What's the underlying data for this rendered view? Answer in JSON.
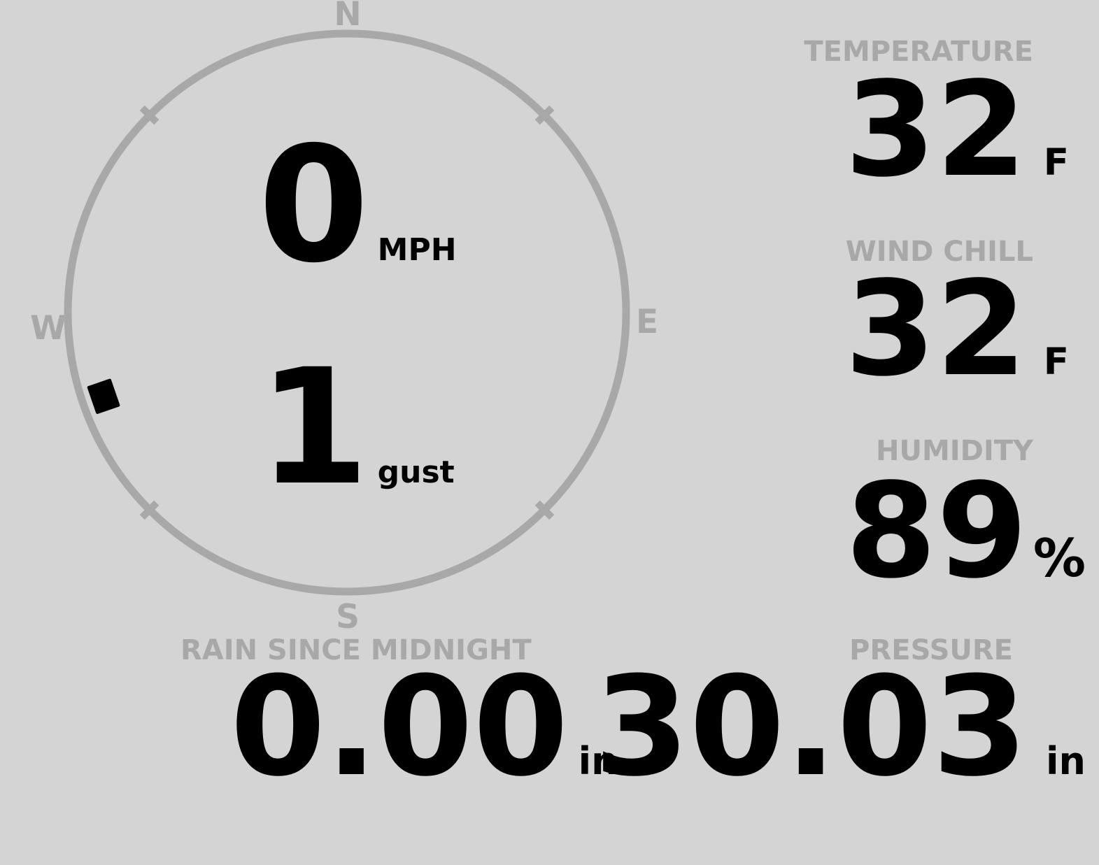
{
  "theme": {
    "bg": "#d4d4d4",
    "muted": "#a8a8a8",
    "ink": "#000000"
  },
  "wind_gauge": {
    "cardinals": {
      "north": "N",
      "east": "E",
      "south": "S",
      "west": "W"
    },
    "speed": {
      "value": "0",
      "unit": "MPH"
    },
    "gust": {
      "value": "1",
      "unit": "gust"
    },
    "direction_deg": 251
  },
  "stats": {
    "temperature": {
      "label": "TEMPERATURE",
      "value": "32",
      "unit": "F"
    },
    "wind_chill": {
      "label": "WIND CHILL",
      "value": "32",
      "unit": "F"
    },
    "humidity": {
      "label": "HUMIDITY",
      "value": "89",
      "unit": "%"
    },
    "rain_since_midnight": {
      "label": "RAIN SINCE MIDNIGHT",
      "value": "0.00",
      "unit": "in"
    },
    "pressure": {
      "label": "PRESSURE",
      "value": "30.03",
      "unit": "in"
    }
  }
}
